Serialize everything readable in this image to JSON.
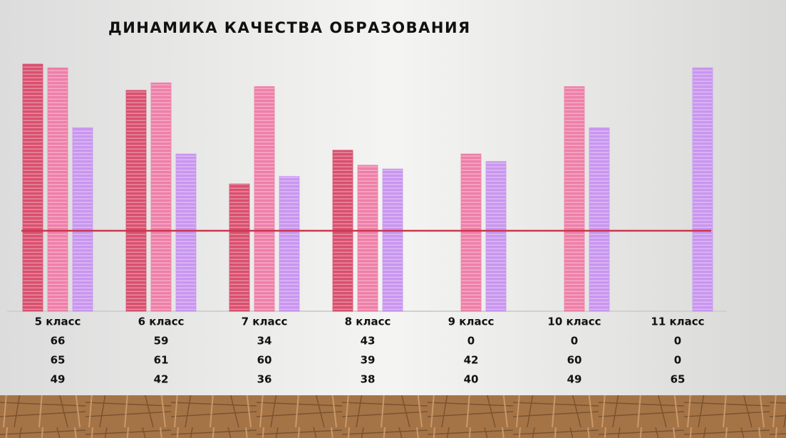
{
  "chart_data": {
    "type": "bar",
    "title": "ДИНАМИКА КАЧЕСТВА ОБРАЗОВАНИЯ",
    "categories": [
      "5 класс",
      "6 класс",
      "7 класс",
      "8 класс",
      "9 класс",
      "10 класс",
      "11 класс"
    ],
    "series": [
      {
        "color": "#d9506e",
        "values": [
          66,
          59,
          34,
          43,
          0,
          0,
          0
        ]
      },
      {
        "color": "#ee7fa8",
        "values": [
          65,
          61,
          60,
          39,
          42,
          60,
          0
        ]
      },
      {
        "color": "#c996ef",
        "values": [
          49,
          42,
          36,
          38,
          40,
          49,
          65
        ]
      }
    ],
    "reference_line": {
      "value": 21.5,
      "color": "#c8384f"
    },
    "ylim": [
      0,
      66
    ]
  }
}
